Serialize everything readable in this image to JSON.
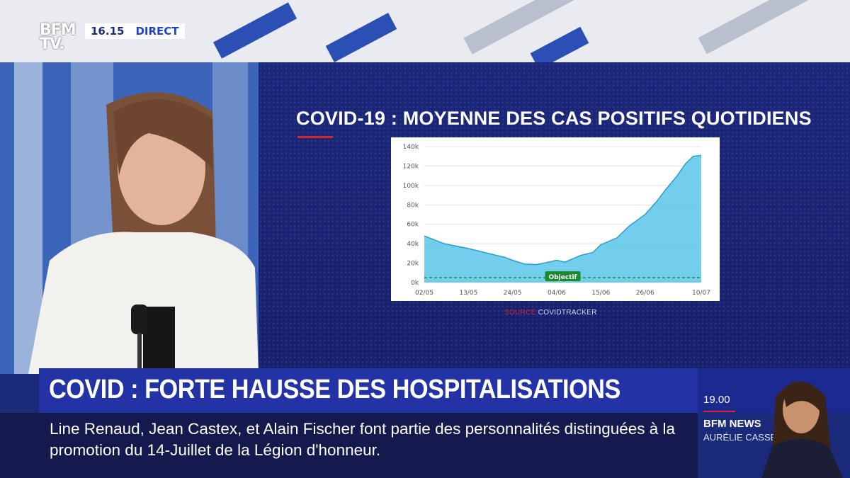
{
  "channel": {
    "logo": "BFM TV.",
    "time": "16.15",
    "live_tag": "DIRECT"
  },
  "graphic": {
    "title": "COVID-19 : MOYENNE DES CAS POSITIFS QUOTIDIENS",
    "source_prefix": "SOURCE",
    "source_name": "COVIDTRACKER"
  },
  "chart_data": {
    "type": "area",
    "title": "COVID-19 : MOYENNE DES CAS POSITIFS QUOTIDIENS",
    "xlabel": "",
    "ylabel": "",
    "ylim": [
      0,
      140000
    ],
    "yticks": [
      "0k",
      "20k",
      "40k",
      "60k",
      "80k",
      "100k",
      "120k",
      "140k"
    ],
    "xticks": [
      "02/05",
      "13/05",
      "24/05",
      "04/06",
      "15/06",
      "26/06",
      "10/07"
    ],
    "grid": true,
    "x": [
      "02/05",
      "07/05",
      "13/05",
      "18/05",
      "22/05",
      "24/05",
      "27/05",
      "30/05",
      "03/06",
      "04/06",
      "06/06",
      "10/06",
      "13/06",
      "15/06",
      "19/06",
      "22/06",
      "26/06",
      "29/06",
      "01/07",
      "04/07",
      "06/07",
      "08/07",
      "10/07"
    ],
    "values": [
      48000,
      40000,
      35000,
      30000,
      26000,
      23000,
      19000,
      18500,
      22000,
      23000,
      21000,
      28000,
      31000,
      39000,
      46000,
      58000,
      70000,
      84000,
      95000,
      110000,
      122000,
      130000,
      131000
    ],
    "fill_color": "#5bc6ea",
    "line_color": "#2a9fce",
    "reference_line": {
      "label": "Objectif",
      "value": 5000,
      "color": "#1a8a2a"
    }
  },
  "headline": "COVID : FORTE HAUSSE DES HOSPITALISATIONS",
  "ticker": "Line Renaud, Jean Castex, et Alain Fischer font partie des personnalités distinguées à la promotion du 14-Juillet de la Légion d'honneur.",
  "next_program": {
    "time": "19.00",
    "show": "BFM NEWS",
    "host": "AURÉLIE CASSE"
  },
  "colors": {
    "brand": "#2333a6",
    "accent": "#d8242b",
    "background": "#1b2a7a"
  }
}
